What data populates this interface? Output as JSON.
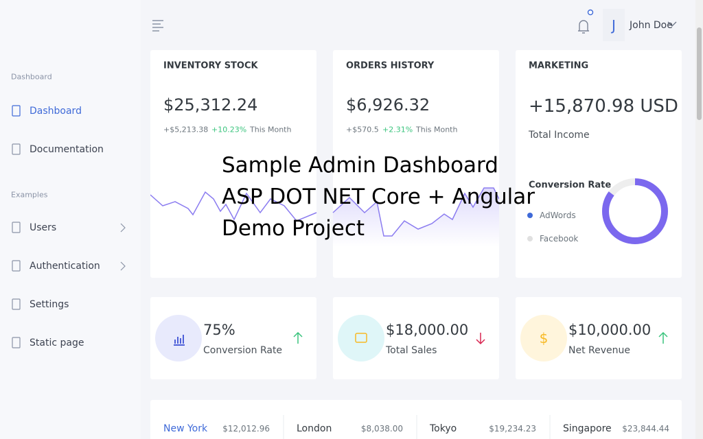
{
  "sidebar": {
    "sections": [
      {
        "title": "Dashboard",
        "items": [
          "Dashboard",
          "Documentation"
        ]
      },
      {
        "title": "Examples",
        "items": [
          "Users",
          "Authentication",
          "Settings",
          "Static page"
        ]
      }
    ]
  },
  "header": {
    "avatar": "J",
    "user": "John Doe"
  },
  "cards": [
    {
      "title": "INVENTORY STOCK",
      "value": "$25,312.24",
      "change": "+$5,213.38",
      "percent": "+10.23%",
      "period": "This Month"
    },
    {
      "title": "ORDERS HISTORY",
      "value": "$6,926.32",
      "change": "+$570.5",
      "percent": "+2.31%",
      "period": "This Month"
    }
  ],
  "marketing": {
    "title": "MARKETING",
    "value": "+15,870.98 USD",
    "subtitle": "Total Income",
    "chart_title": "Conversion Rate",
    "legend": [
      "AdWords",
      "Facebook"
    ]
  },
  "overlay": [
    "Sample Admin Dashboard",
    "ASP DOT NET Core + Angular",
    "Demo Project"
  ],
  "stats": [
    {
      "value": "75%",
      "label": "Conversion Rate"
    },
    {
      "value": "$18,000.00",
      "label": "Total Sales"
    },
    {
      "value": "$10,000.00",
      "label": "Net Revenue"
    }
  ],
  "cities": [
    {
      "name": "New York",
      "amount": "$12,012.96"
    },
    {
      "name": "London",
      "amount": "$8,038.00"
    },
    {
      "name": "Tokyo",
      "amount": "$19,234.23"
    },
    {
      "name": "Singapore",
      "amount": "$23,844.44"
    }
  ]
}
